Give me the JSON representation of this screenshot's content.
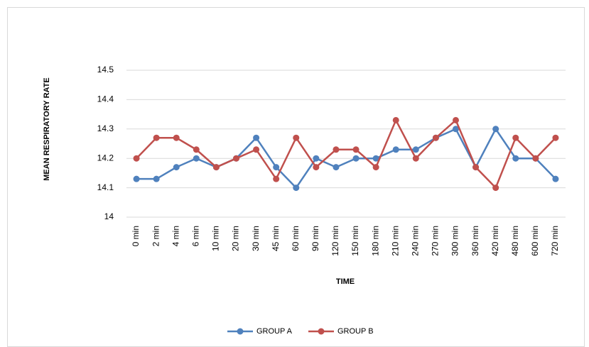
{
  "chart_data": {
    "type": "line",
    "y_label": "MEAN RESPIRATORY RATE",
    "x_label": "TIME",
    "categories": [
      "0 min",
      "2 min",
      "4 min",
      "6 min",
      "10 min",
      "20 min",
      "30 min",
      "45 min",
      "60 min",
      "90 min",
      "120 min",
      "150 min",
      "180 min",
      "210 min",
      "240 min",
      "270 min",
      "300 min",
      "360 min",
      "420 min",
      "480 min",
      "600 min",
      "720 min"
    ],
    "series": [
      {
        "name": "GROUP A",
        "color": "#4f81bd",
        "values": [
          14.13,
          14.13,
          14.17,
          14.2,
          14.17,
          14.2,
          14.27,
          14.17,
          14.1,
          14.2,
          14.17,
          14.2,
          14.2,
          14.23,
          14.23,
          14.27,
          14.3,
          14.17,
          14.3,
          14.2,
          14.2,
          14.13
        ]
      },
      {
        "name": "GROUP B",
        "color": "#c0504d",
        "values": [
          14.2,
          14.27,
          14.27,
          14.23,
          14.17,
          14.2,
          14.23,
          14.13,
          14.27,
          14.17,
          14.23,
          14.23,
          14.17,
          14.33,
          14.2,
          14.27,
          14.33,
          14.17,
          14.1,
          14.27,
          14.2,
          14.27
        ]
      }
    ],
    "ylim": [
      14,
      14.5
    ],
    "yticks": [
      14,
      14.1,
      14.2,
      14.3,
      14.4,
      14.5
    ],
    "grid": true,
    "legend": "bottom"
  }
}
